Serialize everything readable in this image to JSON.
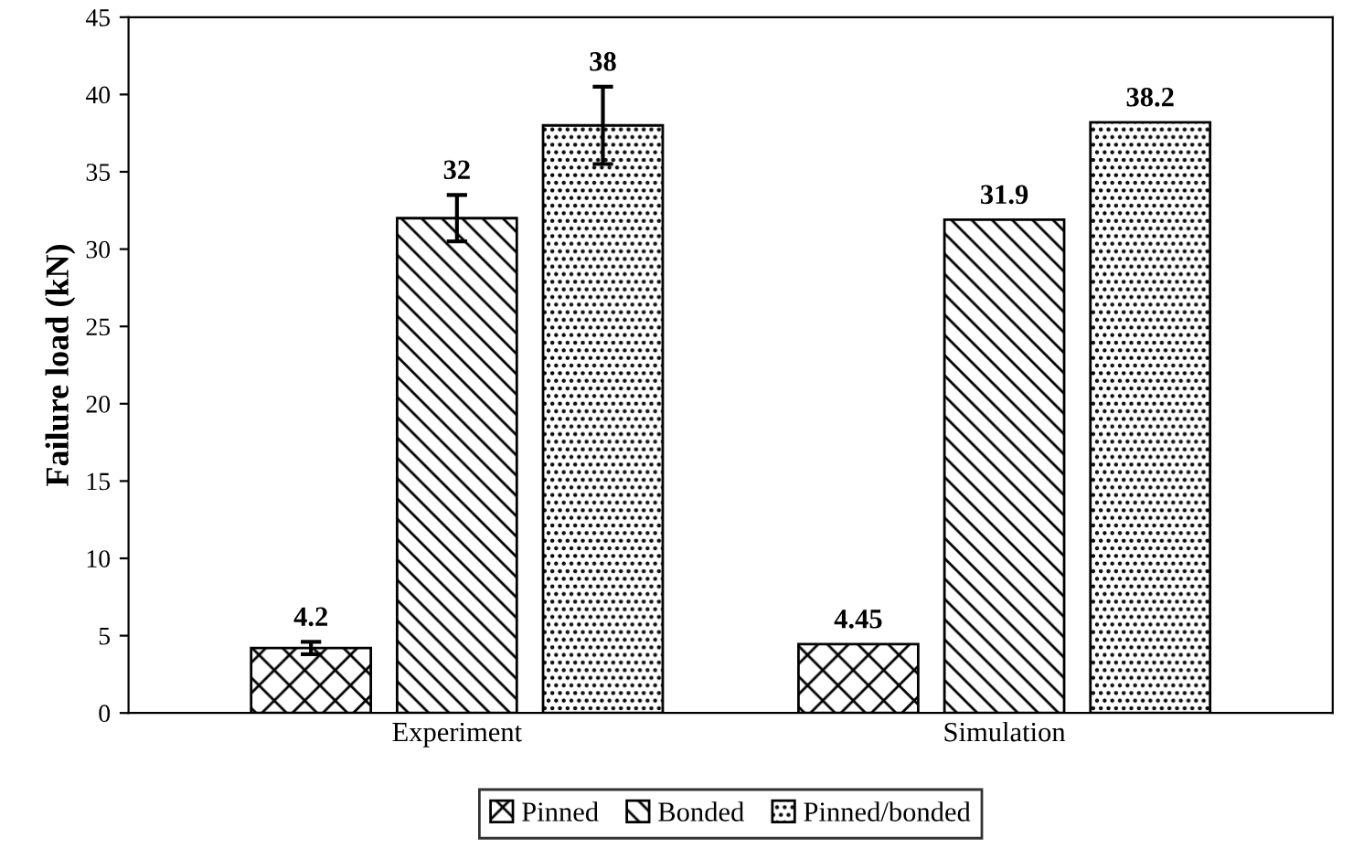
{
  "chart_data": {
    "type": "bar",
    "ylabel": "Failure load (kN)",
    "categories": [
      "Experiment",
      "Simulation"
    ],
    "series": [
      {
        "name": "Pinned",
        "color": "#000000",
        "values": [
          4.2,
          4.45
        ],
        "errors": [
          0.4,
          null
        ]
      },
      {
        "name": "Bonded",
        "color": "#000000",
        "values": [
          32,
          31.9
        ],
        "errors": [
          1.5,
          null
        ]
      },
      {
        "name": "Pinned/bonded",
        "color": "#000000",
        "values": [
          38,
          38.2
        ],
        "errors": [
          2.5,
          null
        ]
      }
    ],
    "ylim": [
      0,
      45
    ],
    "yticks": [
      0,
      5,
      10,
      15,
      20,
      25,
      30,
      35,
      40,
      45
    ],
    "data_labels": true,
    "grid": false,
    "legend": "bottom"
  }
}
